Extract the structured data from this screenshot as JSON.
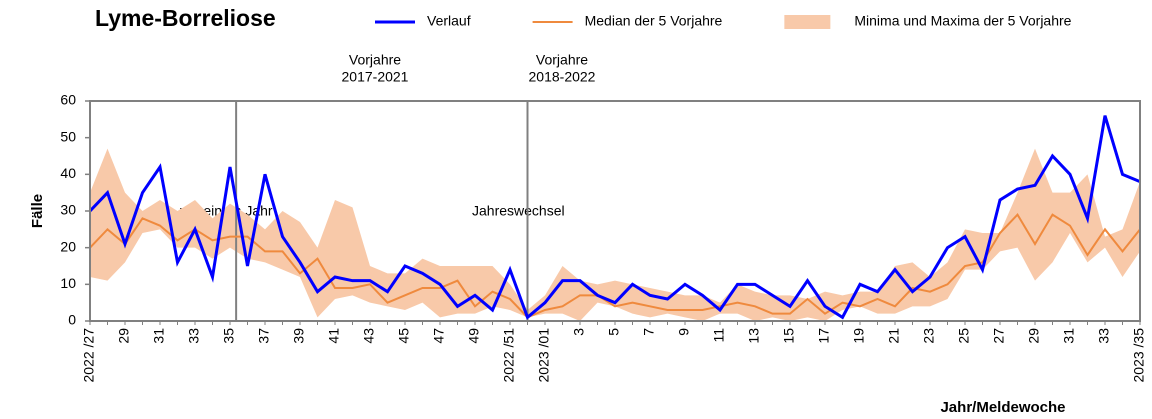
{
  "chart_data": {
    "type": "line",
    "title": "Lyme-Borreliose",
    "y_label": "Fälle",
    "x_label": "Jahr/Meldewoche",
    "annotations": [
      "Vorjahre",
      "2017-2021",
      "Vorjahre",
      "2018-2022",
      "vor einem Jahr",
      "Jahreswechsel"
    ],
    "categories": [
      "2022 /27",
      null,
      "29",
      null,
      "31",
      null,
      "33",
      null,
      "35",
      null,
      "37",
      null,
      "39",
      null,
      "41",
      null,
      "43",
      null,
      "45",
      null,
      "47",
      null,
      "49",
      null,
      "2022 /51",
      null,
      "2023 /01",
      null,
      "3",
      null,
      "5",
      null,
      "7",
      null,
      "9",
      null,
      "11",
      null,
      "13",
      null,
      "15",
      null,
      "17",
      null,
      "19",
      null,
      "21",
      null,
      "23",
      null,
      "25",
      null,
      "27",
      null,
      "29",
      null,
      "31",
      null,
      "33",
      null,
      "2023 /35"
    ],
    "ylim": [
      0,
      60
    ],
    "yticks": [
      0,
      10,
      20,
      30,
      40,
      50,
      60
    ],
    "band": {
      "name": "Minima und Maxima der 5 Vorjahre",
      "color": "#f8c9a9",
      "min": [
        12,
        11,
        16,
        24,
        25,
        20,
        20,
        17,
        20,
        17,
        16,
        14,
        12,
        1,
        6,
        7,
        5,
        4,
        3,
        5,
        1,
        2,
        2,
        4,
        3,
        1,
        2,
        2,
        0,
        5,
        4,
        2,
        1,
        2,
        1,
        0,
        2,
        2,
        0,
        1,
        0,
        1,
        0,
        3,
        4,
        2,
        2,
        4,
        4,
        6,
        14,
        14,
        19,
        20,
        11,
        16,
        24,
        16,
        20,
        12,
        19
      ],
      "max": [
        35,
        47,
        35,
        30,
        33,
        30,
        33,
        28,
        32,
        29,
        25,
        30,
        27,
        20,
        33,
        31,
        15,
        13,
        13,
        17,
        15,
        15,
        15,
        15,
        10,
        3,
        7,
        15,
        11,
        10,
        11,
        10,
        9,
        8,
        7,
        7,
        5,
        10,
        8,
        7,
        7,
        6,
        8,
        7,
        8,
        8,
        15,
        16,
        12,
        16,
        25,
        24,
        24,
        35,
        47,
        35,
        35,
        40,
        23,
        25,
        38
      ]
    },
    "series": [
      {
        "name": "Verlauf",
        "color": "#0000ff",
        "width": 3,
        "values": [
          30,
          35,
          21,
          35,
          42,
          16,
          25,
          12,
          42,
          15,
          40,
          23,
          16,
          8,
          12,
          11,
          11,
          8,
          15,
          13,
          10,
          4,
          7,
          3,
          14,
          1,
          5,
          11,
          11,
          7,
          5,
          10,
          7,
          6,
          10,
          7,
          3,
          10,
          10,
          7,
          4,
          11,
          4,
          1,
          10,
          8,
          14,
          8,
          12,
          20,
          23,
          14,
          33,
          36,
          37,
          45,
          40,
          28,
          56,
          40,
          38
        ]
      },
      {
        "name": "Median der 5 Vorjahre",
        "color": "#ef8a3e",
        "width": 2,
        "values": [
          20,
          25,
          21,
          28,
          26,
          22,
          25,
          22,
          23,
          23,
          19,
          19,
          13,
          17,
          9,
          9,
          10,
          5,
          7,
          9,
          9,
          11,
          4,
          8,
          6,
          1,
          3,
          4,
          7,
          7,
          4,
          5,
          4,
          3,
          3,
          3,
          4,
          5,
          4,
          2,
          2,
          6,
          2,
          5,
          4,
          6,
          4,
          9,
          8,
          10,
          15,
          16,
          24,
          29,
          21,
          29,
          26,
          18,
          25,
          19,
          25
        ]
      }
    ]
  }
}
